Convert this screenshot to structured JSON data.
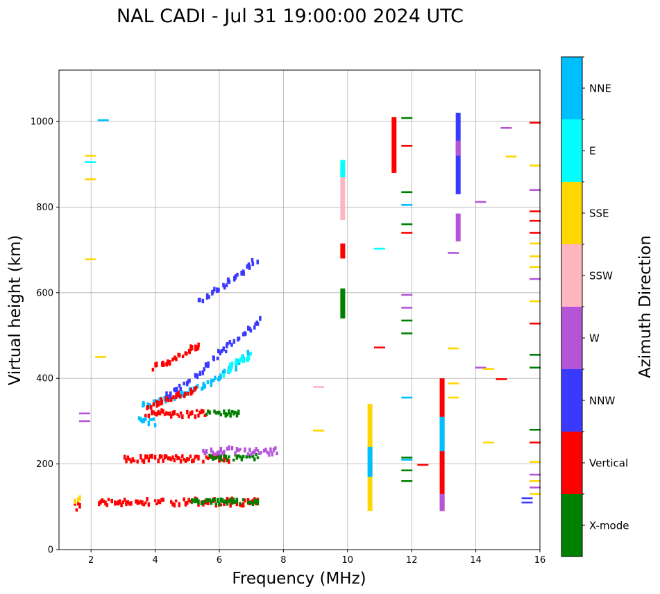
{
  "chart_data": {
    "type": "scatter",
    "title": "NAL CADI - Jul 31 19:00:00 2024 UTC",
    "xlabel": "Frequency (MHz)",
    "ylabel": "Virtual height (km)",
    "xlim": [
      1,
      16
    ],
    "ylim": [
      0,
      1120
    ],
    "xticks": [
      2,
      4,
      6,
      8,
      10,
      12,
      14,
      16
    ],
    "yticks": [
      0,
      200,
      400,
      600,
      800,
      1000
    ],
    "grid": true,
    "colorbar": {
      "label": "Azimuth Direction",
      "categories": [
        {
          "name": "X-mode",
          "color": "#008000"
        },
        {
          "name": "Vertical",
          "color": "#ff0000"
        },
        {
          "name": "NNW",
          "color": "#3a3aff"
        },
        {
          "name": "W",
          "color": "#b455d8"
        },
        {
          "name": "SSW",
          "color": "#ffb6c1"
        },
        {
          "name": "SSE",
          "color": "#ffd700"
        },
        {
          "name": "E",
          "color": "#00ffff"
        },
        {
          "name": "NNE",
          "color": "#00bfff"
        }
      ]
    },
    "segments": [
      {
        "dir": "Vertical",
        "f": [
          2.2,
          7.2
        ],
        "h": [
          103,
          118
        ]
      },
      {
        "dir": "X-mode",
        "f": [
          5.1,
          7.2
        ],
        "h": [
          105,
          117
        ]
      },
      {
        "dir": "Vertical",
        "f": [
          3.0,
          6.3
        ],
        "h": [
          205,
          220
        ]
      },
      {
        "dir": "X-mode",
        "f": [
          5.7,
          7.2
        ],
        "h": [
          208,
          222
        ]
      },
      {
        "dir": "W",
        "f": [
          5.5,
          7.8
        ],
        "h": [
          222,
          238
        ]
      },
      {
        "dir": "Vertical",
        "f": [
          3.7,
          5.6
        ],
        "h": [
          310,
          325
        ]
      },
      {
        "dir": "X-mode",
        "f": [
          5.5,
          6.6
        ],
        "h": [
          314,
          324
        ]
      },
      {
        "dir": "NNE",
        "f": [
          3.5,
          4.0
        ],
        "h": [
          290,
          310
        ]
      },
      {
        "dir": "Vertical",
        "f": [
          1.5,
          1.65
        ],
        "h": [
          92,
          108
        ]
      },
      {
        "dir": "SSE",
        "f": [
          1.5,
          1.65
        ],
        "h": [
          108,
          138
        ]
      }
    ],
    "traces": [
      {
        "dir": "NNE",
        "f": [
          3.6,
          4.2,
          4.8,
          5.4,
          6.0,
          6.5,
          7.0
        ],
        "h": [
          335,
          350,
          362,
          380,
          400,
          430,
          460
        ]
      },
      {
        "dir": "Vertical",
        "f": [
          3.8,
          4.3,
          4.8,
          5.3
        ],
        "h": [
          330,
          348,
          362,
          375
        ]
      },
      {
        "dir": "NNW",
        "f": [
          4.4,
          5.0,
          5.6,
          6.2,
          6.8,
          7.3
        ],
        "h": [
          360,
          390,
          430,
          470,
          505,
          540
        ]
      },
      {
        "dir": "Vertical",
        "f": [
          4.0,
          4.5,
          5.0,
          5.4
        ],
        "h": [
          425,
          440,
          460,
          480
        ]
      },
      {
        "dir": "NNW",
        "f": [
          5.4,
          6.0,
          6.6,
          7.2
        ],
        "h": [
          580,
          610,
          640,
          680
        ]
      },
      {
        "dir": "E",
        "f": [
          6.2,
          6.6,
          7.0
        ],
        "h": [
          410,
          440,
          455
        ]
      }
    ],
    "columns": [
      {
        "dir": "SSW",
        "f": 9.85,
        "h": [
          770,
          900
        ]
      },
      {
        "dir": "E",
        "f": 9.85,
        "h": [
          870,
          910
        ]
      },
      {
        "dir": "Vertical",
        "f": 9.85,
        "h": [
          680,
          715
        ]
      },
      {
        "dir": "X-mode",
        "f": 9.85,
        "h": [
          540,
          610
        ]
      },
      {
        "dir": "SSE",
        "f": 10.7,
        "h": [
          90,
          340
        ]
      },
      {
        "dir": "NNE",
        "f": 10.7,
        "h": [
          170,
          240
        ]
      },
      {
        "dir": "Vertical",
        "f": 11.45,
        "h": [
          880,
          1010
        ]
      },
      {
        "dir": "Vertical",
        "f": 12.95,
        "h": [
          90,
          400
        ]
      },
      {
        "dir": "NNE",
        "f": 12.95,
        "h": [
          230,
          310
        ]
      },
      {
        "dir": "W",
        "f": 12.95,
        "h": [
          90,
          130
        ]
      },
      {
        "dir": "NNW",
        "f": 13.45,
        "h": [
          830,
          1020
        ]
      },
      {
        "dir": "W",
        "f": 13.45,
        "h": [
          920,
          955
        ]
      },
      {
        "dir": "W",
        "f": 13.45,
        "h": [
          720,
          785
        ]
      }
    ],
    "ticks_marks": [
      {
        "dir": "Vertical",
        "f": 15.85,
        "h": [
          997,
          790,
          768,
          740,
          528,
          250
        ]
      },
      {
        "dir": "X-mode",
        "f": 15.85,
        "h": [
          455,
          425,
          280
        ]
      },
      {
        "dir": "SSE",
        "f": 15.85,
        "h": [
          897,
          715,
          685,
          660,
          580,
          205,
          160,
          130
        ]
      },
      {
        "dir": "W",
        "f": 15.85,
        "h": [
          840,
          632,
          175,
          145
        ]
      },
      {
        "dir": "NNW",
        "f": 15.6,
        "h": [
          120,
          110
        ]
      },
      {
        "dir": "SSE",
        "f": 15.1,
        "h": [
          918
        ]
      },
      {
        "dir": "W",
        "f": 14.95,
        "h": [
          985
        ]
      },
      {
        "dir": "W",
        "f": 14.15,
        "h": [
          812,
          425
        ]
      },
      {
        "dir": "SSE",
        "f": 14.4,
        "h": [
          250,
          422
        ]
      },
      {
        "dir": "Vertical",
        "f": 14.8,
        "h": [
          398
        ]
      },
      {
        "dir": "X-mode",
        "f": 11.85,
        "h": [
          1008,
          835,
          760,
          535,
          505,
          215,
          185,
          160
        ]
      },
      {
        "dir": "NNE",
        "f": 11.85,
        "h": [
          805,
          355,
          210
        ]
      },
      {
        "dir": "W",
        "f": 11.85,
        "h": [
          595,
          565
        ]
      },
      {
        "dir": "Vertical",
        "f": 11.85,
        "h": [
          943,
          740
        ]
      },
      {
        "dir": "Vertical",
        "f": 12.35,
        "h": [
          198
        ]
      },
      {
        "dir": "SSE",
        "f": 13.3,
        "h": [
          470,
          388,
          355
        ]
      },
      {
        "dir": "W",
        "f": 13.3,
        "h": [
          693
        ]
      },
      {
        "dir": "SSW",
        "f": 9.1,
        "h": [
          380
        ]
      },
      {
        "dir": "SSE",
        "f": 9.1,
        "h": [
          278
        ]
      },
      {
        "dir": "Vertical",
        "f": 11.0,
        "h": [
          472
        ]
      },
      {
        "dir": "E",
        "f": 11.0,
        "h": [
          703
        ]
      },
      {
        "dir": "SSE",
        "f": 1.98,
        "h": [
          920,
          865,
          678
        ]
      },
      {
        "dir": "E",
        "f": 1.98,
        "h": [
          905
        ]
      },
      {
        "dir": "NNE",
        "f": 2.38,
        "h": [
          1003
        ]
      },
      {
        "dir": "SSE",
        "f": 2.3,
        "h": [
          450
        ]
      },
      {
        "dir": "W",
        "f": 1.8,
        "h": [
          318,
          300
        ]
      }
    ]
  }
}
